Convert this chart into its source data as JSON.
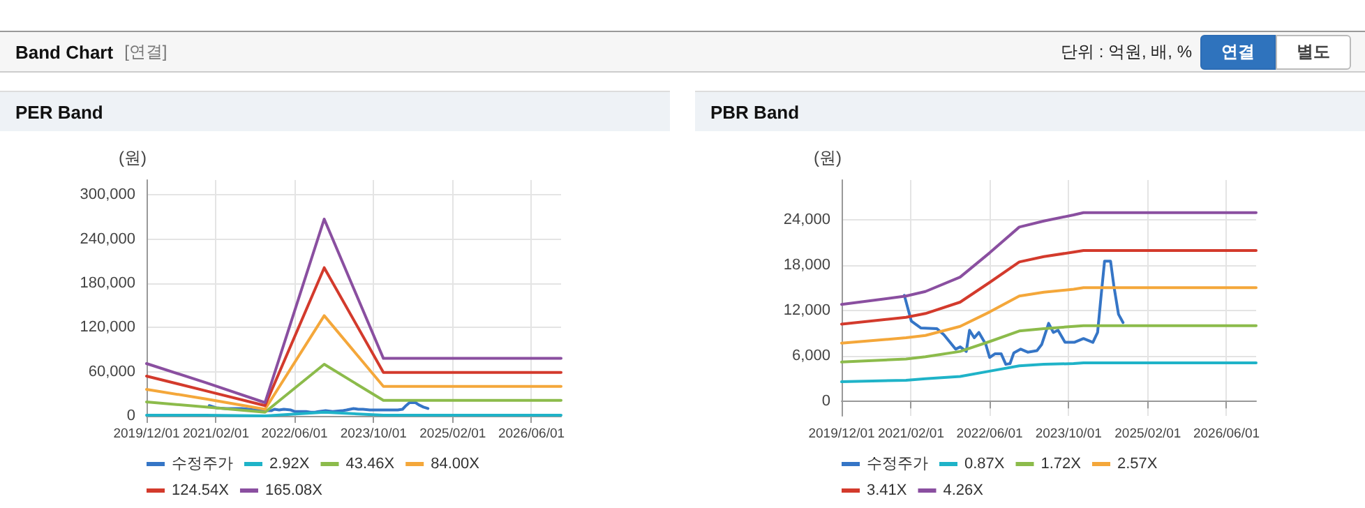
{
  "chart_data": [
    {
      "type": "other",
      "title": "Band Chart",
      "subtitle": "[연결]",
      "annotations": [
        "단위 : 억원, 배, %",
        "연결",
        "별도"
      ]
    },
    {
      "type": "line",
      "title": "PER Band",
      "ylabel": "(원)",
      "xlim": [
        "2019-12-01",
        "2026-12-01"
      ],
      "xticks": [
        {
          "value": "2019-12-01",
          "label": "2019/12/01"
        },
        {
          "value": "2021-02-01",
          "label": "2021/02/01"
        },
        {
          "value": "2022-06-01",
          "label": "2022/06/01"
        },
        {
          "value": "2023-10-01",
          "label": "2023/10/01"
        },
        {
          "value": "2025-02-01",
          "label": "2025/02/01"
        },
        {
          "value": "2026-06-01",
          "label": "2026/06/01"
        }
      ],
      "ylim": [
        0,
        320000
      ],
      "yticks": [
        0,
        {
          "value": 60000,
          "label": "60,000"
        },
        {
          "value": 120000,
          "label": "120,000"
        },
        {
          "value": 180000,
          "label": "180,000"
        },
        {
          "value": 240000,
          "label": "240,000"
        },
        {
          "value": 300000,
          "label": "300,000"
        }
      ],
      "grid": true,
      "legend": "bottom",
      "x": [
        "2019-12-01",
        "2020-12-01",
        "2021-12-01",
        "2022-12-01",
        "2023-12-01",
        "2026-12-01"
      ],
      "series": [
        {
          "name": "수정주가",
          "color": "#3575c6",
          "x": [
            "2020-12-22",
            "2021-02-03",
            "2021-04-02",
            "2021-07-11",
            "2021-08-23",
            "2021-11-03",
            "2021-12-02",
            "2022-01-08",
            "2022-01-28",
            "2022-02-26",
            "2022-03-27",
            "2022-05-09",
            "2022-06-01",
            "2022-07-05",
            "2022-08-11",
            "2022-09-09",
            "2022-10-05",
            "2022-10-28",
            "2022-12-10",
            "2023-01-22",
            "2023-03-20",
            "2023-04-18",
            "2023-05-31",
            "2023-06-29",
            "2023-07-28",
            "2023-09-09",
            "2023-11-05",
            "2024-01-01",
            "2024-02-28",
            "2024-03-28",
            "2024-04-19",
            "2024-05-10",
            "2024-06-16",
            "2024-07-06",
            "2024-08-04",
            "2024-09-01"
          ],
          "values": [
            14000,
            11000,
            10000,
            10000,
            9000,
            7000,
            7000,
            7000,
            9000,
            8000,
            9000,
            8000,
            6000,
            6000,
            6000,
            5000,
            5000,
            6000,
            7000,
            6000,
            7000,
            8000,
            10000,
            9000,
            9000,
            8000,
            8000,
            8000,
            8000,
            9000,
            14000,
            18000,
            18000,
            15000,
            12000,
            10000
          ]
        },
        {
          "name": "2.92X",
          "color": "#1fb3c8",
          "values": [
            1000,
            1000,
            0,
            5000,
            1000,
            1000
          ]
        },
        {
          "name": "43.46X",
          "color": "#8cbb4b",
          "values": [
            19000,
            12000,
            5000,
            70000,
            21000,
            21000
          ]
        },
        {
          "name": "84.00X",
          "color": "#f4a73a",
          "values": [
            36000,
            23000,
            9000,
            136000,
            40000,
            40000
          ]
        },
        {
          "name": "124.54X",
          "color": "#d33a2c",
          "values": [
            54000,
            34000,
            14000,
            201000,
            59000,
            59000
          ]
        },
        {
          "name": "165.08X",
          "color": "#8a4fa0",
          "values": [
            71000,
            45000,
            18000,
            267000,
            78000,
            78000
          ]
        }
      ]
    },
    {
      "type": "line",
      "title": "PBR Band",
      "ylabel": "(원)",
      "xlim": [
        "2019-12-01",
        "2026-12-01"
      ],
      "xticks": [
        {
          "value": "2019-12-01",
          "label": "2019/12/01"
        },
        {
          "value": "2021-02-01",
          "label": "2021/02/01"
        },
        {
          "value": "2022-06-01",
          "label": "2022/06/01"
        },
        {
          "value": "2023-10-01",
          "label": "2023/10/01"
        },
        {
          "value": "2025-02-01",
          "label": "2025/02/01"
        },
        {
          "value": "2026-06-01",
          "label": "2026/06/01"
        }
      ],
      "ylim": [
        -1900,
        29200
      ],
      "yticks": [
        0,
        {
          "value": 6000,
          "label": "6,000"
        },
        {
          "value": 12000,
          "label": "12,000"
        },
        {
          "value": 18000,
          "label": "18,000"
        },
        {
          "value": 24000,
          "label": "24,000"
        }
      ],
      "grid": true,
      "legend": "bottom",
      "x": [
        "2019-12-01",
        "2021-01-01",
        "2021-05-01",
        "2021-12-01",
        "2022-06-01",
        "2022-12-01",
        "2023-05-01",
        "2023-11-01",
        "2024-01-01",
        "2026-12-01"
      ],
      "series": [
        {
          "name": "수정주가",
          "color": "#3575c6",
          "x": [
            "2020-12-22",
            "2021-02-03",
            "2021-04-02",
            "2021-07-11",
            "2021-08-23",
            "2021-11-03",
            "2021-12-02",
            "2022-01-08",
            "2022-01-28",
            "2022-02-26",
            "2022-03-27",
            "2022-05-09",
            "2022-06-01",
            "2022-07-05",
            "2022-08-11",
            "2022-09-09",
            "2022-10-05",
            "2022-10-28",
            "2022-12-10",
            "2023-01-22",
            "2023-03-20",
            "2023-04-18",
            "2023-05-31",
            "2023-06-29",
            "2023-07-28",
            "2023-09-09",
            "2023-11-05",
            "2024-01-01",
            "2024-02-28",
            "2024-03-28",
            "2024-04-19",
            "2024-05-10",
            "2024-06-16",
            "2024-07-06",
            "2024-08-04",
            "2024-09-01"
          ],
          "values": [
            14000,
            10600,
            9700,
            9600,
            8800,
            6900,
            7200,
            6600,
            9400,
            8400,
            9100,
            7500,
            5800,
            6300,
            6300,
            4900,
            5000,
            6400,
            6900,
            6500,
            6700,
            7500,
            10300,
            9100,
            9400,
            7800,
            7800,
            8300,
            7800,
            9100,
            14000,
            18500,
            18500,
            15300,
            11500,
            10400
          ]
        },
        {
          "name": "0.87X",
          "color": "#1fb3c8",
          "values": [
            2600,
            2800,
            3000,
            3300,
            4000,
            4700,
            4900,
            5000,
            5100,
            5100
          ]
        },
        {
          "name": "1.72X",
          "color": "#8cbb4b",
          "values": [
            5200,
            5600,
            5900,
            6600,
            7900,
            9300,
            9600,
            9900,
            10000,
            10000
          ]
        },
        {
          "name": "2.57X",
          "color": "#f4a73a",
          "values": [
            7700,
            8400,
            8700,
            9900,
            11800,
            13900,
            14400,
            14800,
            15000,
            15000
          ]
        },
        {
          "name": "3.41X",
          "color": "#d33a2c",
          "values": [
            10200,
            11100,
            11600,
            13100,
            15700,
            18400,
            19100,
            19700,
            19900,
            19900
          ]
        },
        {
          "name": "4.26X",
          "color": "#8a4fa0",
          "values": [
            12800,
            13900,
            14500,
            16400,
            19600,
            23000,
            23800,
            24600,
            24900,
            24900
          ]
        }
      ]
    }
  ]
}
